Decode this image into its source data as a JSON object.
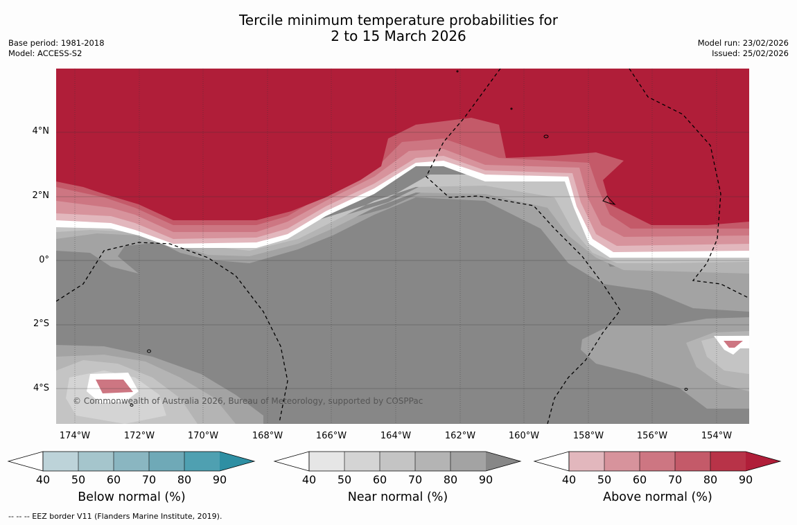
{
  "title": {
    "line1": "Tercile minimum temperature probabilities for",
    "line2": "2 to 15 March 2026"
  },
  "meta": {
    "base_period": "Base period: 1981-2018",
    "model": "Model: ACCESS-S2",
    "model_run": "Model run: 23/02/2026",
    "issued": "Issued: 25/02/2026"
  },
  "map": {
    "lat_labels": [
      "4°N",
      "2°N",
      "0°",
      "2°S",
      "4°S"
    ],
    "lon_labels": [
      "174°W",
      "172°W",
      "170°W",
      "168°W",
      "166°W",
      "164°W",
      "162°W",
      "160°W",
      "158°W",
      "156°W",
      "154°W"
    ],
    "copyright": "© Commonwealth of Australia 2026, Bureau of Meteorology, supported by COSPPac"
  },
  "colorbars": [
    {
      "title": "Below normal (%)",
      "ticks": [
        "40",
        "50",
        "60",
        "70",
        "80",
        "90"
      ],
      "colors": [
        "#bdd3d9",
        "#a5c5cc",
        "#8ab6c1",
        "#6fa9b7",
        "#4fa0b1",
        "#2e8fa3"
      ]
    },
    {
      "title": "Near normal (%)",
      "ticks": [
        "40",
        "50",
        "60",
        "70",
        "80",
        "90"
      ],
      "colors": [
        "#e6e6e6",
        "#d4d4d4",
        "#c4c4c4",
        "#b4b4b4",
        "#a3a3a3",
        "#878787"
      ]
    },
    {
      "title": "Above normal (%)",
      "ticks": [
        "40",
        "50",
        "60",
        "70",
        "80",
        "90"
      ],
      "colors": [
        "#e2b7bd",
        "#d7939c",
        "#cd7682",
        "#c45a69",
        "#b83348",
        "#b01e39"
      ]
    }
  ],
  "footer": "--  --  -- EEZ border V11 (Flanders Marine Institute, 2019)."
}
